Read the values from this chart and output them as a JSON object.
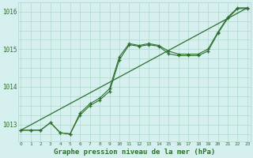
{
  "title": "Graphe pression niveau de la mer (hPa)",
  "bg_color": "#d6f0f0",
  "grid_color": "#b0d8cc",
  "line_color": "#2d6e2d",
  "x_labels": [
    "0",
    "1",
    "2",
    "3",
    "4",
    "5",
    "6",
    "7",
    "8",
    "9",
    "10",
    "11",
    "12",
    "13",
    "14",
    "15",
    "16",
    "17",
    "18",
    "19",
    "20",
    "21",
    "22",
    "23"
  ],
  "y_ticks": [
    1013,
    1014,
    1015,
    1016
  ],
  "ylim": [
    1012.55,
    1016.25
  ],
  "xlim": [
    -0.3,
    23.3
  ],
  "series1_x": [
    0,
    1,
    2,
    3,
    4,
    5,
    6,
    7,
    8,
    9,
    10,
    11,
    12,
    13,
    14,
    15,
    16,
    17,
    18,
    19,
    20,
    21,
    22,
    23
  ],
  "series1_y": [
    1012.85,
    1012.85,
    1012.85,
    1013.05,
    1012.78,
    1012.75,
    1013.3,
    1013.55,
    1013.7,
    1013.95,
    1014.8,
    1015.15,
    1015.1,
    1015.15,
    1015.1,
    1014.95,
    1014.87,
    1014.87,
    1014.87,
    1015.0,
    1015.45,
    1015.85,
    1016.1,
    1016.1
  ],
  "series2_x": [
    0,
    1,
    2,
    3,
    4,
    5,
    6,
    7,
    8,
    9,
    10,
    11,
    12,
    13,
    14,
    15,
    16,
    17,
    18,
    19,
    20,
    21,
    22,
    23
  ],
  "series2_y": [
    1012.85,
    1012.85,
    1012.85,
    1013.05,
    1012.78,
    1012.75,
    1013.25,
    1013.5,
    1013.65,
    1013.88,
    1014.72,
    1015.12,
    1015.08,
    1015.12,
    1015.08,
    1014.88,
    1014.83,
    1014.83,
    1014.83,
    1014.95,
    1015.42,
    1015.82,
    1016.08,
    1016.08
  ],
  "series3_x": [
    0,
    23
  ],
  "series3_y": [
    1012.85,
    1016.1
  ]
}
